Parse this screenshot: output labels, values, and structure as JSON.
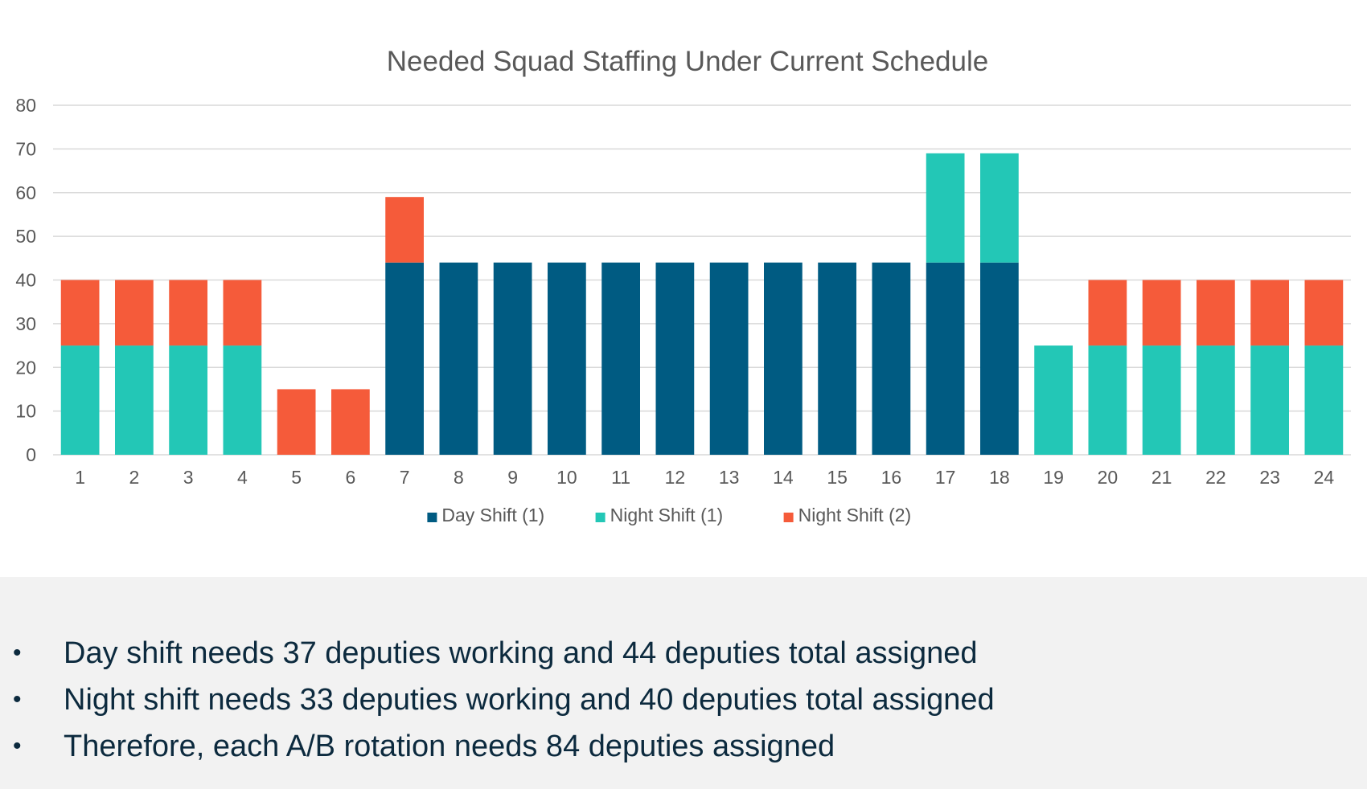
{
  "chart_data": {
    "type": "bar",
    "stacked": true,
    "title": "Needed Squad Staffing Under Current Schedule",
    "xlabel": "",
    "ylabel": "",
    "ylim": [
      0,
      80
    ],
    "yticks": [
      0,
      10,
      20,
      30,
      40,
      50,
      60,
      70,
      80
    ],
    "grid": true,
    "legend_position": "bottom",
    "categories": [
      "1",
      "2",
      "3",
      "4",
      "5",
      "6",
      "7",
      "8",
      "9",
      "10",
      "11",
      "12",
      "13",
      "14",
      "15",
      "16",
      "17",
      "18",
      "19",
      "20",
      "21",
      "22",
      "23",
      "24"
    ],
    "series": [
      {
        "name": "Day Shift (1)",
        "color": "#005b82",
        "values": [
          0,
          0,
          0,
          0,
          0,
          0,
          44,
          44,
          44,
          44,
          44,
          44,
          44,
          44,
          44,
          44,
          44,
          44,
          0,
          0,
          0,
          0,
          0,
          0
        ]
      },
      {
        "name": "Night Shift (1)",
        "color": "#23c7b6",
        "values": [
          25,
          25,
          25,
          25,
          0,
          0,
          0,
          0,
          0,
          0,
          0,
          0,
          0,
          0,
          0,
          0,
          25,
          25,
          25,
          25,
          25,
          25,
          25,
          25
        ]
      },
      {
        "name": "Night Shift (2)",
        "color": "#f55b3a",
        "values": [
          15,
          15,
          15,
          15,
          15,
          15,
          15,
          0,
          0,
          0,
          0,
          0,
          0,
          0,
          0,
          0,
          0,
          0,
          0,
          15,
          15,
          15,
          15,
          15
        ]
      }
    ]
  },
  "notes": {
    "bullet": "•",
    "items": [
      "Day shift needs 37 deputies working and 44 deputies total assigned",
      "Night shift needs 33 deputies working and 40 deputies total assigned",
      "Therefore, each A/B rotation needs 84 deputies assigned"
    ]
  }
}
